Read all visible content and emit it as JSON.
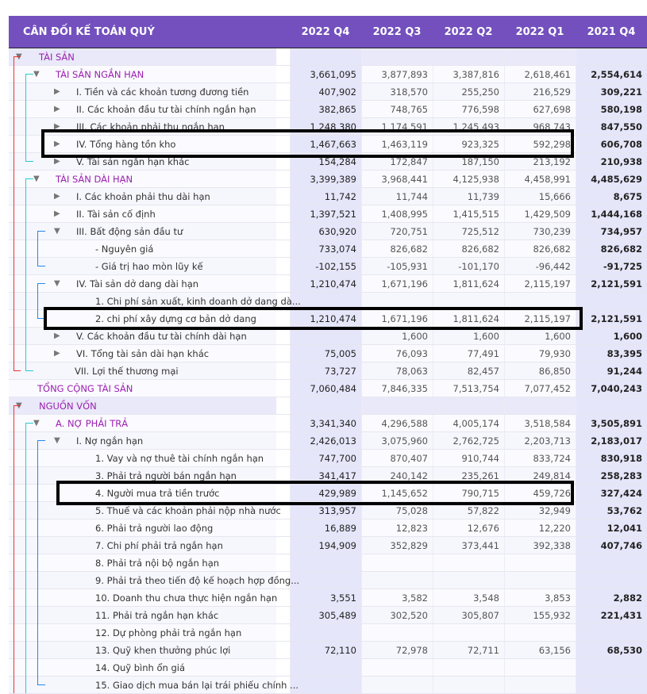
{
  "header": {
    "title": "CÂN ĐỐI KẾ TOÁN QUÝ",
    "columns": [
      "2022 Q4",
      "2022 Q3",
      "2022 Q2",
      "2022 Q1",
      "2021 Q4"
    ]
  },
  "rows": [
    {
      "label": "TÀI SẢN",
      "level": 0,
      "toggle": "down",
      "section": true,
      "top": true,
      "values": [
        "",
        "",
        "",
        "",
        ""
      ]
    },
    {
      "label": "TÀI SẢN NGẮN HẠN",
      "level": 1,
      "toggle": "down",
      "section": true,
      "values": [
        "3,661,095",
        "3,877,893",
        "3,387,816",
        "2,618,461",
        "2,554,614"
      ]
    },
    {
      "label": "I. Tiền và các khoản tương đương tiền",
      "level": 2,
      "toggle": "right",
      "values": [
        "407,902",
        "318,570",
        "255,250",
        "216,529",
        "309,221"
      ]
    },
    {
      "label": "II. Các khoản đầu tư tài chính ngắn hạn",
      "level": 2,
      "toggle": "right",
      "values": [
        "382,865",
        "748,765",
        "776,598",
        "627,698",
        "580,198"
      ]
    },
    {
      "label": "III. Các khoản phải thu ngắn hạn",
      "level": 2,
      "toggle": "right",
      "values": [
        "1,248,380",
        "1,174,591",
        "1,245,493",
        "968,743",
        "847,550"
      ]
    },
    {
      "label": "IV. Tổng hàng tồn kho",
      "level": 2,
      "toggle": "right",
      "values": [
        "1,467,663",
        "1,463,119",
        "923,325",
        "592,298",
        "606,708"
      ]
    },
    {
      "label": "V. Tài sản ngắn hạn khác",
      "level": 2,
      "toggle": "right",
      "values": [
        "154,284",
        "172,847",
        "187,150",
        "213,192",
        "210,938"
      ]
    },
    {
      "label": "TÀI SẢN DÀI HẠN",
      "level": 1,
      "toggle": "down",
      "section": true,
      "values": [
        "3,399,389",
        "3,968,441",
        "4,125,938",
        "4,458,991",
        "4,485,629"
      ]
    },
    {
      "label": "I. Các khoản phải thu dài hạn",
      "level": 2,
      "toggle": "right",
      "values": [
        "11,742",
        "11,744",
        "11,739",
        "15,666",
        "8,675"
      ]
    },
    {
      "label": "II. Tài sản cố định",
      "level": 2,
      "toggle": "right",
      "values": [
        "1,397,521",
        "1,408,995",
        "1,415,515",
        "1,429,509",
        "1,444,168"
      ]
    },
    {
      "label": "III. Bất động sản đầu tư",
      "level": 2,
      "toggle": "down",
      "values": [
        "630,920",
        "720,751",
        "725,512",
        "730,239",
        "734,957"
      ]
    },
    {
      "label": "- Nguyên giá",
      "level": 3,
      "values": [
        "733,074",
        "826,682",
        "826,682",
        "826,682",
        "826,682"
      ]
    },
    {
      "label": "- Giá trị hao mòn lũy kế",
      "level": 3,
      "values": [
        "-102,155",
        "-105,931",
        "-101,170",
        "-96,442",
        "-91,725"
      ]
    },
    {
      "label": "IV. Tài sản dở dang dài hạn",
      "level": 2,
      "toggle": "down",
      "values": [
        "1,210,474",
        "1,671,196",
        "1,811,624",
        "2,115,197",
        "2,121,591"
      ]
    },
    {
      "label": "1. Chi phí sản xuất, kinh doanh dở dang dà...",
      "level": 3,
      "values": [
        "",
        "",
        "",
        "",
        ""
      ]
    },
    {
      "label": "2. chi phí xây dựng cơ bản dở dang",
      "level": 3,
      "values": [
        "1,210,474",
        "1,671,196",
        "1,811,624",
        "2,115,197",
        "2,121,591"
      ]
    },
    {
      "label": "V. Các khoản đầu tư tài chính dài hạn",
      "level": 2,
      "toggle": "right",
      "values": [
        "",
        "1,600",
        "1,600",
        "1,600",
        "1,600"
      ]
    },
    {
      "label": "VI. Tổng tài sản dài hạn khác",
      "level": 2,
      "toggle": "right",
      "values": [
        "75,005",
        "76,093",
        "77,491",
        "79,930",
        "83,395"
      ]
    },
    {
      "label": "VII. Lợi thế thương mại",
      "level": 2,
      "values": [
        "73,727",
        "78,063",
        "82,457",
        "86,850",
        "91,244"
      ]
    },
    {
      "label": "TỔNG CỘNG TÀI SẢN",
      "level": 0,
      "section": true,
      "values": [
        "7,060,484",
        "7,846,335",
        "7,513,754",
        "7,077,452",
        "7,040,243"
      ]
    },
    {
      "label": "NGUỒN VỐN",
      "level": 0,
      "toggle": "down",
      "section": true,
      "top": true,
      "values": [
        "",
        "",
        "",
        "",
        ""
      ]
    },
    {
      "label": "A. NỢ PHẢI TRẢ",
      "level": 1,
      "toggle": "down",
      "section": true,
      "values": [
        "3,341,340",
        "4,296,588",
        "4,005,174",
        "3,518,584",
        "3,505,891"
      ]
    },
    {
      "label": "I. Nợ ngắn hạn",
      "level": 2,
      "toggle": "down",
      "values": [
        "2,426,013",
        "3,075,960",
        "2,762,725",
        "2,203,713",
        "2,183,017"
      ]
    },
    {
      "label": "1. Vay và nợ thuê tài chính ngắn hạn",
      "level": 3,
      "values": [
        "747,700",
        "870,407",
        "910,744",
        "833,724",
        "830,918"
      ]
    },
    {
      "label": "3. Phải trả người bán ngắn hạn",
      "level": 3,
      "values": [
        "341,417",
        "240,142",
        "235,261",
        "249,814",
        "258,283"
      ]
    },
    {
      "label": "4. Người mua trả tiền trước",
      "level": 3,
      "values": [
        "429,989",
        "1,145,652",
        "790,715",
        "459,726",
        "327,424"
      ]
    },
    {
      "label": "5. Thuế và các khoản phải nộp nhà nước",
      "level": 3,
      "values": [
        "313,957",
        "75,028",
        "57,822",
        "32,949",
        "53,762"
      ]
    },
    {
      "label": "6. Phải trả người lao động",
      "level": 3,
      "values": [
        "16,889",
        "12,823",
        "12,676",
        "12,220",
        "12,041"
      ]
    },
    {
      "label": "7. Chi phí phải trả ngắn hạn",
      "level": 3,
      "values": [
        "194,909",
        "352,829",
        "373,441",
        "392,338",
        "407,746"
      ]
    },
    {
      "label": "8. Phải trả nội bộ ngắn hạn",
      "level": 3,
      "values": [
        "",
        "",
        "",
        "",
        ""
      ]
    },
    {
      "label": "9. Phải trả theo tiến độ kế hoạch hợp đồng...",
      "level": 3,
      "values": [
        "",
        "",
        "",
        "",
        ""
      ]
    },
    {
      "label": "10. Doanh thu chưa thực hiện ngắn hạn",
      "level": 3,
      "values": [
        "3,551",
        "3,582",
        "3,548",
        "3,853",
        "2,882"
      ]
    },
    {
      "label": "11. Phải trả ngắn hạn khác",
      "level": 3,
      "values": [
        "305,489",
        "302,520",
        "305,807",
        "155,932",
        "221,431"
      ]
    },
    {
      "label": "12. Dự phòng phải trả ngắn hạn",
      "level": 3,
      "values": [
        "",
        "",
        "",
        "",
        ""
      ]
    },
    {
      "label": "13. Quỹ khen thưởng phúc lợi",
      "level": 3,
      "values": [
        "72,110",
        "72,978",
        "72,711",
        "63,156",
        "68,530"
      ]
    },
    {
      "label": "14. Quỹ bình ổn giá",
      "level": 3,
      "values": [
        "",
        "",
        "",
        "",
        ""
      ]
    },
    {
      "label": "15. Giao dịch mua bán lại trái phiếu chính ...",
      "level": 3,
      "values": [
        "",
        "",
        "",
        "",
        ""
      ]
    }
  ]
}
